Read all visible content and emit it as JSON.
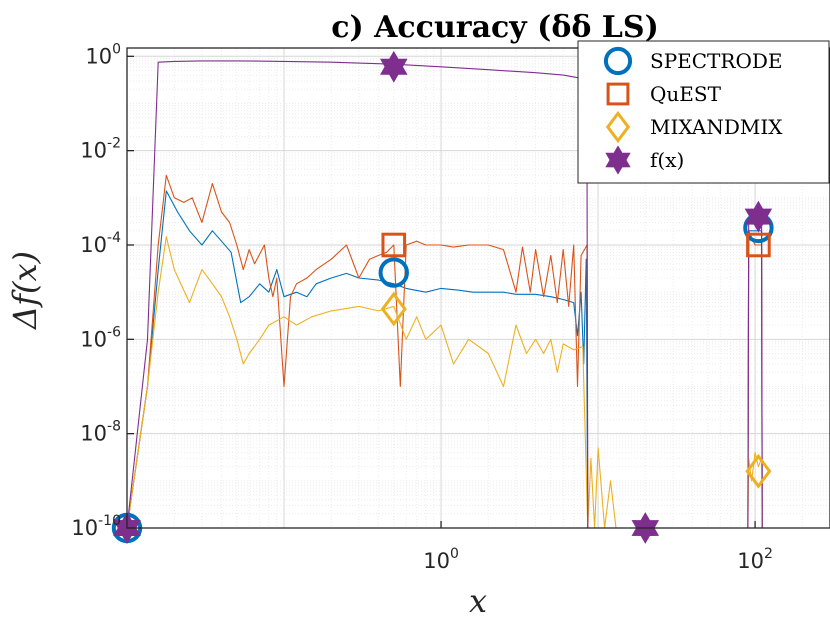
{
  "chart_data": {
    "type": "line",
    "title": "c) Accuracy (δδ LS)",
    "xlabel": "x",
    "ylabel": "Δf(x)",
    "xscale": "log",
    "yscale": "log",
    "xlim": [
      0.01,
      300
    ],
    "ylim": [
      1e-10,
      1.5
    ],
    "grid": true,
    "legend_position": "top-right",
    "x_ticks": [
      {
        "value": 1,
        "base": "10",
        "exp": "0"
      },
      {
        "value": 100,
        "base": "10",
        "exp": "2"
      }
    ],
    "y_ticks": [
      {
        "value": 1,
        "base": "10",
        "exp": "0"
      },
      {
        "value": 0.01,
        "base": "10",
        "exp": "-2"
      },
      {
        "value": 0.0001,
        "base": "10",
        "exp": "-4"
      },
      {
        "value": 1e-06,
        "base": "10",
        "exp": "-6"
      },
      {
        "value": 1e-08,
        "base": "10",
        "exp": "-8"
      },
      {
        "value": 1e-10,
        "base": "10",
        "exp": "-10"
      }
    ],
    "series": [
      {
        "name": "SPECTRODE",
        "color": "#0072BD",
        "marker": "circle",
        "points": [
          [
            0.01,
            1e-10
          ],
          [
            0.0135,
            1e-07
          ],
          [
            0.0158,
            3e-05
          ],
          [
            0.0178,
            0.0014
          ],
          [
            0.021,
            0.0005
          ],
          [
            0.025,
            0.0002
          ],
          [
            0.03,
            0.0001
          ],
          [
            0.035,
            0.0002
          ],
          [
            0.04,
            0.00012
          ],
          [
            0.046,
            7e-05
          ],
          [
            0.053,
            6e-06
          ],
          [
            0.06,
            8e-06
          ],
          [
            0.07,
            1.5e-05
          ],
          [
            0.08,
            1e-05
          ],
          [
            0.09,
            3e-05
          ],
          [
            0.1,
            8e-06
          ],
          [
            0.12,
            1e-05
          ],
          [
            0.14,
            8e-06
          ],
          [
            0.16,
            1.5e-05
          ],
          [
            0.2,
            2e-05
          ],
          [
            0.25,
            2.5e-05
          ],
          [
            0.3,
            2e-05
          ],
          [
            0.4,
            1.8e-05
          ],
          [
            0.5,
            1.5e-05
          ],
          [
            0.6,
            1.2e-05
          ],
          [
            0.8,
            1e-05
          ],
          [
            1,
            1.2e-05
          ],
          [
            1.3,
            1.1e-05
          ],
          [
            1.6,
            1e-05
          ],
          [
            2,
            1e-05
          ],
          [
            2.5,
            1e-05
          ],
          [
            3,
            9e-06
          ],
          [
            4,
            9e-06
          ],
          [
            5,
            8e-06
          ],
          [
            6,
            7e-06
          ],
          [
            7,
            6e-06
          ],
          [
            7.4,
            1.2e-06
          ],
          [
            7.8,
            1e-05
          ],
          [
            8.1,
            3e-07
          ],
          [
            8.4,
            5e-05
          ],
          [
            8.6,
            1e-10
          ],
          [
            90,
            1e-10
          ],
          [
            91,
            0.0002
          ],
          [
            110,
            0.0002
          ],
          [
            111,
            1e-10
          ],
          [
            300,
            1e-10
          ]
        ],
        "markers": [
          [
            0.01,
            1e-10
          ],
          [
            0.5,
            2.6e-05
          ],
          [
            105,
            0.00023
          ]
        ]
      },
      {
        "name": "QuEST",
        "color": "#D95319",
        "marker": "square",
        "points": [
          [
            0.01,
            1e-10
          ],
          [
            0.0135,
            1e-07
          ],
          [
            0.0158,
            0.0001
          ],
          [
            0.0178,
            0.003
          ],
          [
            0.02,
            0.001
          ],
          [
            0.023,
            0.0008
          ],
          [
            0.026,
            0.001
          ],
          [
            0.03,
            0.0003
          ],
          [
            0.035,
            0.002
          ],
          [
            0.04,
            0.0005
          ],
          [
            0.045,
            0.0003
          ],
          [
            0.05,
            0.0001
          ],
          [
            0.055,
            3e-05
          ],
          [
            0.06,
            8e-05
          ],
          [
            0.065,
            4e-05
          ],
          [
            0.075,
            0.0001
          ],
          [
            0.08,
            2e-05
          ],
          [
            0.085,
            8e-06
          ],
          [
            0.09,
            2e-05
          ],
          [
            0.1,
            1e-07
          ],
          [
            0.11,
            8e-06
          ],
          [
            0.12,
            1.5e-05
          ],
          [
            0.14,
            2e-05
          ],
          [
            0.16,
            3e-05
          ],
          [
            0.2,
            5e-05
          ],
          [
            0.25,
            0.0001
          ],
          [
            0.3,
            2e-05
          ],
          [
            0.35,
            5e-05
          ],
          [
            0.4,
            6e-05
          ],
          [
            0.45,
            7e-05
          ],
          [
            0.5,
            0.0001
          ],
          [
            0.55,
            1e-07
          ],
          [
            0.6,
            0.0001
          ],
          [
            0.7,
            0.00012
          ],
          [
            0.8,
            0.0001
          ],
          [
            1,
            0.0001
          ],
          [
            1.2,
            9e-05
          ],
          [
            1.5,
            0.0001
          ],
          [
            2,
            0.0001
          ],
          [
            2.5,
            8e-05
          ],
          [
            3,
            1e-05
          ],
          [
            3.3,
            9e-05
          ],
          [
            3.7,
            1e-05
          ],
          [
            4,
            8e-05
          ],
          [
            4.5,
            8e-06
          ],
          [
            5,
            6e-05
          ],
          [
            5.5,
            6e-06
          ],
          [
            6,
            8e-05
          ],
          [
            6.5,
            5e-06
          ],
          [
            7,
            0.0001
          ],
          [
            7.4,
            1e-07
          ],
          [
            7.8,
            6e-05
          ],
          [
            8.2,
            8e-05
          ],
          [
            8.5,
            0.0001
          ],
          [
            8.6,
            1e-10
          ],
          [
            90,
            1e-10
          ],
          [
            91,
            0.0002
          ],
          [
            100,
            0.0001
          ],
          [
            110,
            0.0001
          ],
          [
            111,
            1e-10
          ],
          [
            300,
            1e-10
          ]
        ],
        "markers": [
          [
            0.5,
            0.0001
          ],
          [
            105,
            0.0001
          ]
        ]
      },
      {
        "name": "MIXANDMIX",
        "color": "#EDB120",
        "marker": "diamond",
        "points": [
          [
            0.01,
            1e-10
          ],
          [
            0.0135,
            1e-07
          ],
          [
            0.0158,
            1e-05
          ],
          [
            0.0178,
            0.00015
          ],
          [
            0.02,
            3e-05
          ],
          [
            0.025,
            6e-06
          ],
          [
            0.03,
            3e-05
          ],
          [
            0.035,
            1.5e-05
          ],
          [
            0.04,
            8e-06
          ],
          [
            0.045,
            3e-06
          ],
          [
            0.05,
            1e-06
          ],
          [
            0.055,
            3e-07
          ],
          [
            0.06,
            5e-07
          ],
          [
            0.07,
            1e-06
          ],
          [
            0.08,
            2e-06
          ],
          [
            0.1,
            3e-06
          ],
          [
            0.12,
            2e-06
          ],
          [
            0.15,
            3e-06
          ],
          [
            0.2,
            4e-06
          ],
          [
            0.3,
            5e-06
          ],
          [
            0.4,
            4e-06
          ],
          [
            0.5,
            5e-06
          ],
          [
            0.6,
            1e-06
          ],
          [
            0.7,
            3e-06
          ],
          [
            0.8,
            1e-06
          ],
          [
            1,
            2e-06
          ],
          [
            1.2,
            3e-07
          ],
          [
            1.5,
            1e-06
          ],
          [
            2,
            5e-07
          ],
          [
            2.5,
            1e-07
          ],
          [
            3,
            2e-06
          ],
          [
            3.5,
            5e-07
          ],
          [
            4,
            1e-06
          ],
          [
            4.5,
            5e-07
          ],
          [
            5,
            1e-06
          ],
          [
            5.5,
            2e-07
          ],
          [
            6,
            8e-07
          ],
          [
            7,
            6e-07
          ],
          [
            8,
            7e-07
          ],
          [
            8.6,
            1e-10
          ],
          [
            9,
            3e-09
          ],
          [
            9.5,
            1e-10
          ],
          [
            10,
            5e-09
          ],
          [
            11,
            1e-10
          ],
          [
            12,
            1e-09
          ],
          [
            13,
            1e-10
          ],
          [
            90,
            1e-10
          ],
          [
            91,
            3e-09
          ],
          [
            95,
            1e-09
          ],
          [
            100,
            4e-09
          ],
          [
            105,
            2e-09
          ],
          [
            110,
            3e-09
          ],
          [
            111,
            1e-10
          ],
          [
            300,
            1e-10
          ]
        ],
        "markers": [
          [
            0.5,
            4.4e-06
          ],
          [
            105,
            1.6e-09
          ]
        ]
      },
      {
        "name": "f(x)",
        "color": "#7E2F8E",
        "marker": "hexagram",
        "points": [
          [
            0.01,
            1e-10
          ],
          [
            0.0135,
            1e-06
          ],
          [
            0.0158,
            0.75
          ],
          [
            0.02,
            0.78
          ],
          [
            0.03,
            0.8
          ],
          [
            0.05,
            0.8
          ],
          [
            0.1,
            0.78
          ],
          [
            0.2,
            0.75
          ],
          [
            0.5,
            0.68
          ],
          [
            1,
            0.6
          ],
          [
            2,
            0.52
          ],
          [
            4,
            0.45
          ],
          [
            6,
            0.4
          ],
          [
            7.5,
            0.35
          ],
          [
            8.2,
            0.2
          ],
          [
            8.5,
            0.01
          ],
          [
            8.6,
            1e-10
          ],
          [
            90,
            1e-10
          ],
          [
            91,
            0.0003
          ],
          [
            110,
            0.0003
          ],
          [
            111,
            1e-10
          ],
          [
            300,
            1e-10
          ]
        ],
        "markers": [
          [
            0.5,
            0.6
          ],
          [
            0.01,
            1e-10
          ],
          [
            0.01,
            1e-10
          ],
          [
            20,
            1e-10
          ],
          [
            105,
            0.0004
          ]
        ]
      }
    ]
  }
}
